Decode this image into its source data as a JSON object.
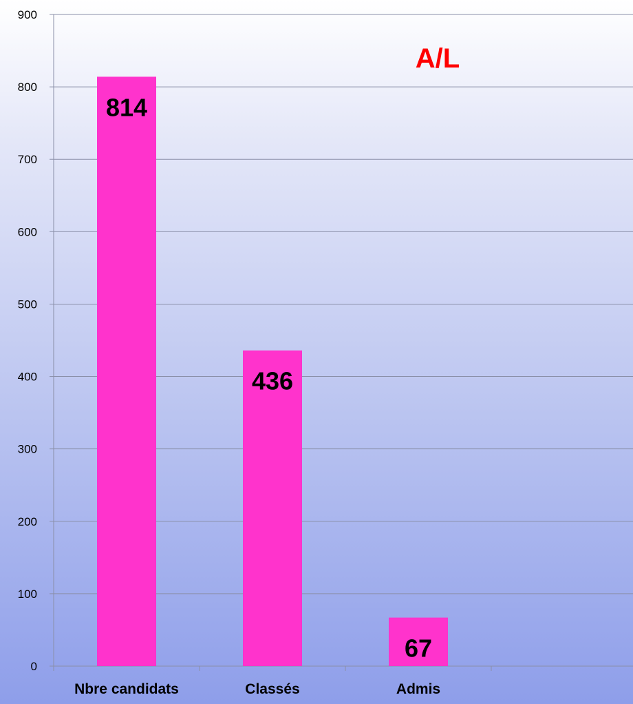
{
  "chart_data": {
    "type": "bar",
    "title": "A/L",
    "categories": [
      "Nbre candidats",
      "Classés",
      "Admis"
    ],
    "values": [
      814,
      436,
      67
    ],
    "data_labels": [
      "814",
      "436",
      "67"
    ],
    "xlabel": "",
    "ylabel": "",
    "ylim": [
      0,
      900
    ],
    "yticks": [
      0,
      100,
      200,
      300,
      400,
      500,
      600,
      700,
      800,
      900
    ],
    "ytick_labels": [
      "0",
      "100",
      "200",
      "300",
      "400",
      "500",
      "600",
      "700",
      "800",
      "900"
    ],
    "grid": true,
    "legend": "none",
    "colors": {
      "bar": "#ff33cc",
      "title": "#ff0000",
      "grid": "#8a8fa8",
      "axis": "#8a8fa8"
    }
  }
}
